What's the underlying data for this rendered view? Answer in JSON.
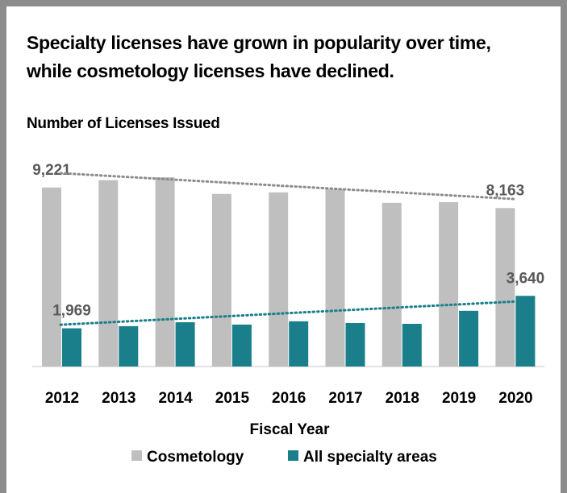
{
  "chart_data": {
    "type": "bar",
    "title": [
      "Specialty licenses have grown in popularity over time,",
      "while cosmetology licenses have declined."
    ],
    "subtitle": "Number of Licenses Issued",
    "x_label": "Fiscal Year",
    "categories": [
      "2012",
      "2013",
      "2014",
      "2015",
      "2016",
      "2017",
      "2018",
      "2019",
      "2020"
    ],
    "series": [
      {
        "name": "Cosmetology",
        "color": "#bfbfbf",
        "values": [
          9221,
          9600,
          9750,
          8890,
          8970,
          9140,
          8430,
          8470,
          8163
        ],
        "value_labels": [
          "9,221",
          null,
          null,
          null,
          null,
          null,
          null,
          null,
          "8,163"
        ],
        "trendline_color": "#8c8c8c"
      },
      {
        "name": "All specialty areas",
        "color": "#1a7f8a",
        "values": [
          1969,
          2080,
          2280,
          2160,
          2330,
          2240,
          2200,
          2870,
          3640
        ],
        "value_labels": [
          "1,969",
          null,
          null,
          null,
          null,
          null,
          null,
          null,
          "3,640"
        ],
        "trendline_color": "#1a7f8a"
      }
    ],
    "trendline": true,
    "legend": "bottom"
  }
}
